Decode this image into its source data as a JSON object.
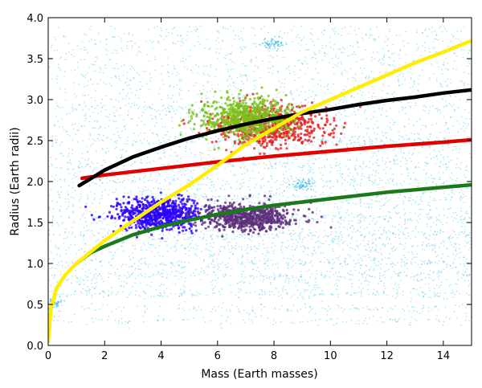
{
  "chart_data": {
    "type": "scatter",
    "xlabel": "Mass (Earth masses)",
    "ylabel": "Radius (Earth radii)",
    "xlim": [
      0,
      15
    ],
    "ylim": [
      0,
      4.0
    ],
    "x_ticks": [
      "0",
      "2",
      "4",
      "6",
      "8",
      "10",
      "12",
      "14"
    ],
    "y_ticks": [
      "0.0",
      "0.5",
      "1.0",
      "1.5",
      "2.0",
      "2.5",
      "3.0",
      "3.5",
      "4.0"
    ],
    "grid": false,
    "legend": "none",
    "background_points": {
      "color": "#29b6e0",
      "description_points": [
        [
          0.2,
          0.52
        ],
        [
          9.0,
          1.95
        ],
        [
          8.0,
          3.68
        ]
      ]
    },
    "clusters": [
      {
        "color": "#2a00ff",
        "center": [
          3.9,
          1.6
        ],
        "spread": [
          0.75,
          0.1
        ]
      },
      {
        "color": "#5c2f7a",
        "center": [
          7.0,
          1.57
        ],
        "spread": [
          0.8,
          0.08
        ]
      },
      {
        "color": "#e52222",
        "center": [
          7.9,
          2.68
        ],
        "spread": [
          1.0,
          0.12
        ]
      },
      {
        "color": "#7ac21c",
        "center": [
          7.0,
          2.78
        ],
        "spread": [
          0.8,
          0.12
        ]
      }
    ],
    "curves": [
      {
        "color": "#ffee00",
        "x": [
          0.0,
          0.1,
          0.3,
          0.6,
          1.0,
          1.5,
          2.0,
          3.0,
          4.0,
          5.0,
          6.0,
          7.0,
          8.0,
          9.0,
          10.0,
          11.0,
          12.0,
          13.0,
          14.0,
          15.0
        ],
        "y": [
          0.05,
          0.46,
          0.7,
          0.86,
          1.0,
          1.14,
          1.28,
          1.52,
          1.75,
          1.96,
          2.2,
          2.45,
          2.65,
          2.85,
          3.0,
          3.15,
          3.3,
          3.45,
          3.58,
          3.72
        ]
      },
      {
        "color": "#000000",
        "x": [
          1.1,
          2.0,
          3.0,
          4.0,
          5.0,
          6.0,
          7.0,
          8.0,
          9.0,
          10.0,
          11.0,
          12.0,
          13.0,
          14.0,
          15.0
        ],
        "y": [
          1.95,
          2.14,
          2.3,
          2.42,
          2.53,
          2.62,
          2.7,
          2.77,
          2.83,
          2.88,
          2.94,
          2.99,
          3.03,
          3.08,
          3.12
        ]
      },
      {
        "color": "#e00000",
        "x": [
          1.2,
          2.0,
          4.0,
          6.0,
          8.0,
          10.0,
          12.0,
          14.0,
          15.0
        ],
        "y": [
          2.04,
          2.08,
          2.16,
          2.24,
          2.31,
          2.37,
          2.43,
          2.48,
          2.51
        ]
      },
      {
        "color": "#1a7a1a",
        "x": [
          1.0,
          1.5,
          2.0,
          3.0,
          4.0,
          5.0,
          6.0,
          7.0,
          8.0,
          9.0,
          10.0,
          11.0,
          12.0,
          13.0,
          14.0,
          15.0
        ],
        "y": [
          1.0,
          1.13,
          1.21,
          1.35,
          1.45,
          1.53,
          1.6,
          1.66,
          1.71,
          1.75,
          1.79,
          1.83,
          1.87,
          1.9,
          1.93,
          1.96
        ]
      }
    ]
  }
}
